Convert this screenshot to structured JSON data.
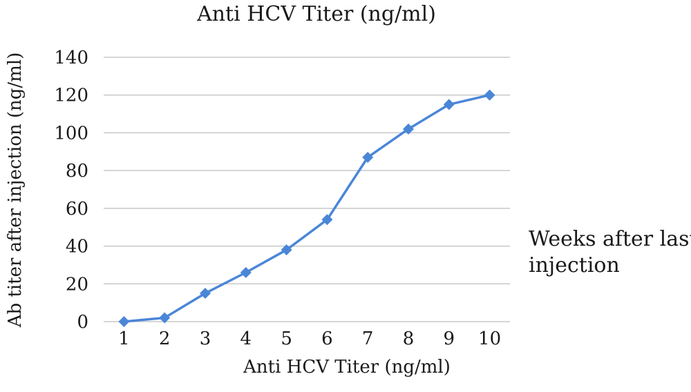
{
  "chart_data": {
    "type": "line",
    "title": "Anti HCV Titer (ng/ml)",
    "xlabel": "Anti HCV Titer (ng/ml)",
    "ylabel": "Ab titer after injection (ng/ml)",
    "categories": [
      "1",
      "2",
      "3",
      "4",
      "5",
      "6",
      "7",
      "8",
      "9",
      "10"
    ],
    "series": [
      {
        "name": "Weeks after last injection",
        "values": [
          0,
          2,
          15,
          26,
          38,
          54,
          87,
          102,
          115,
          120
        ],
        "color": "#4a86d8",
        "marker": "diamond"
      }
    ],
    "ylim": [
      0,
      140
    ],
    "yticks": [
      "0",
      "20",
      "40",
      "60",
      "80",
      "100",
      "120",
      "140"
    ],
    "grid": true,
    "legend_position": "right",
    "legend_lines": [
      "Weeks after last",
      "injection"
    ]
  }
}
